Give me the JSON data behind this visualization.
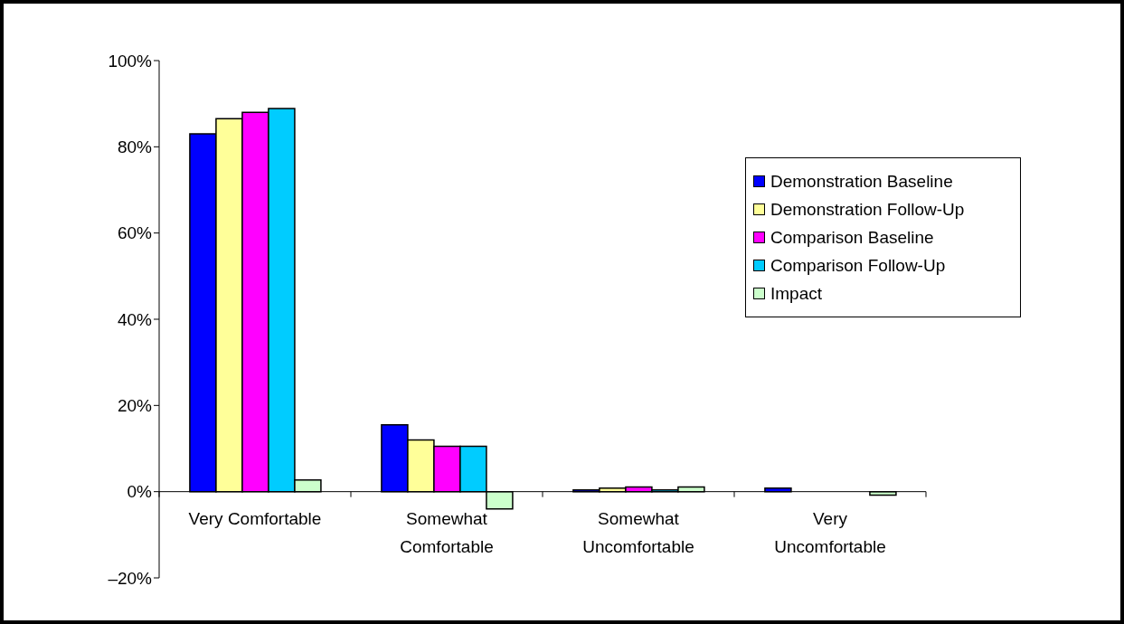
{
  "chart_data": {
    "type": "bar",
    "categories": [
      "Very Comfortable",
      "Somewhat Comfortable",
      "Somewhat Uncomfortable",
      "Very Uncomfortable"
    ],
    "series": [
      {
        "name": "Demonstration Baseline",
        "color": "#0000ff",
        "values": [
          83.0,
          15.5,
          0.4,
          0.8
        ]
      },
      {
        "name": "Demonstration Follow-Up",
        "color": "#ffff99",
        "values": [
          86.5,
          12.0,
          0.8,
          0
        ]
      },
      {
        "name": "Comparison Baseline",
        "color": "#ff00ff",
        "values": [
          88.0,
          10.5,
          1.1,
          0
        ]
      },
      {
        "name": "Comparison Follow-Up",
        "color": "#00ccff",
        "values": [
          88.9,
          10.5,
          0.4,
          0
        ]
      },
      {
        "name": "Impact",
        "color": "#ccffcc",
        "values": [
          2.7,
          -4.0,
          1.1,
          -0.8
        ]
      }
    ],
    "ylim": [
      -20,
      100
    ],
    "yticks": [
      {
        "value": -20,
        "label": "–20%"
      },
      {
        "value": 0,
        "label": "0%"
      },
      {
        "value": 20,
        "label": "20%"
      },
      {
        "value": 40,
        "label": "40%"
      },
      {
        "value": 60,
        "label": "60%"
      },
      {
        "value": 80,
        "label": "80%"
      },
      {
        "value": 100,
        "label": "100%"
      }
    ],
    "grid": false,
    "legend": "right"
  }
}
